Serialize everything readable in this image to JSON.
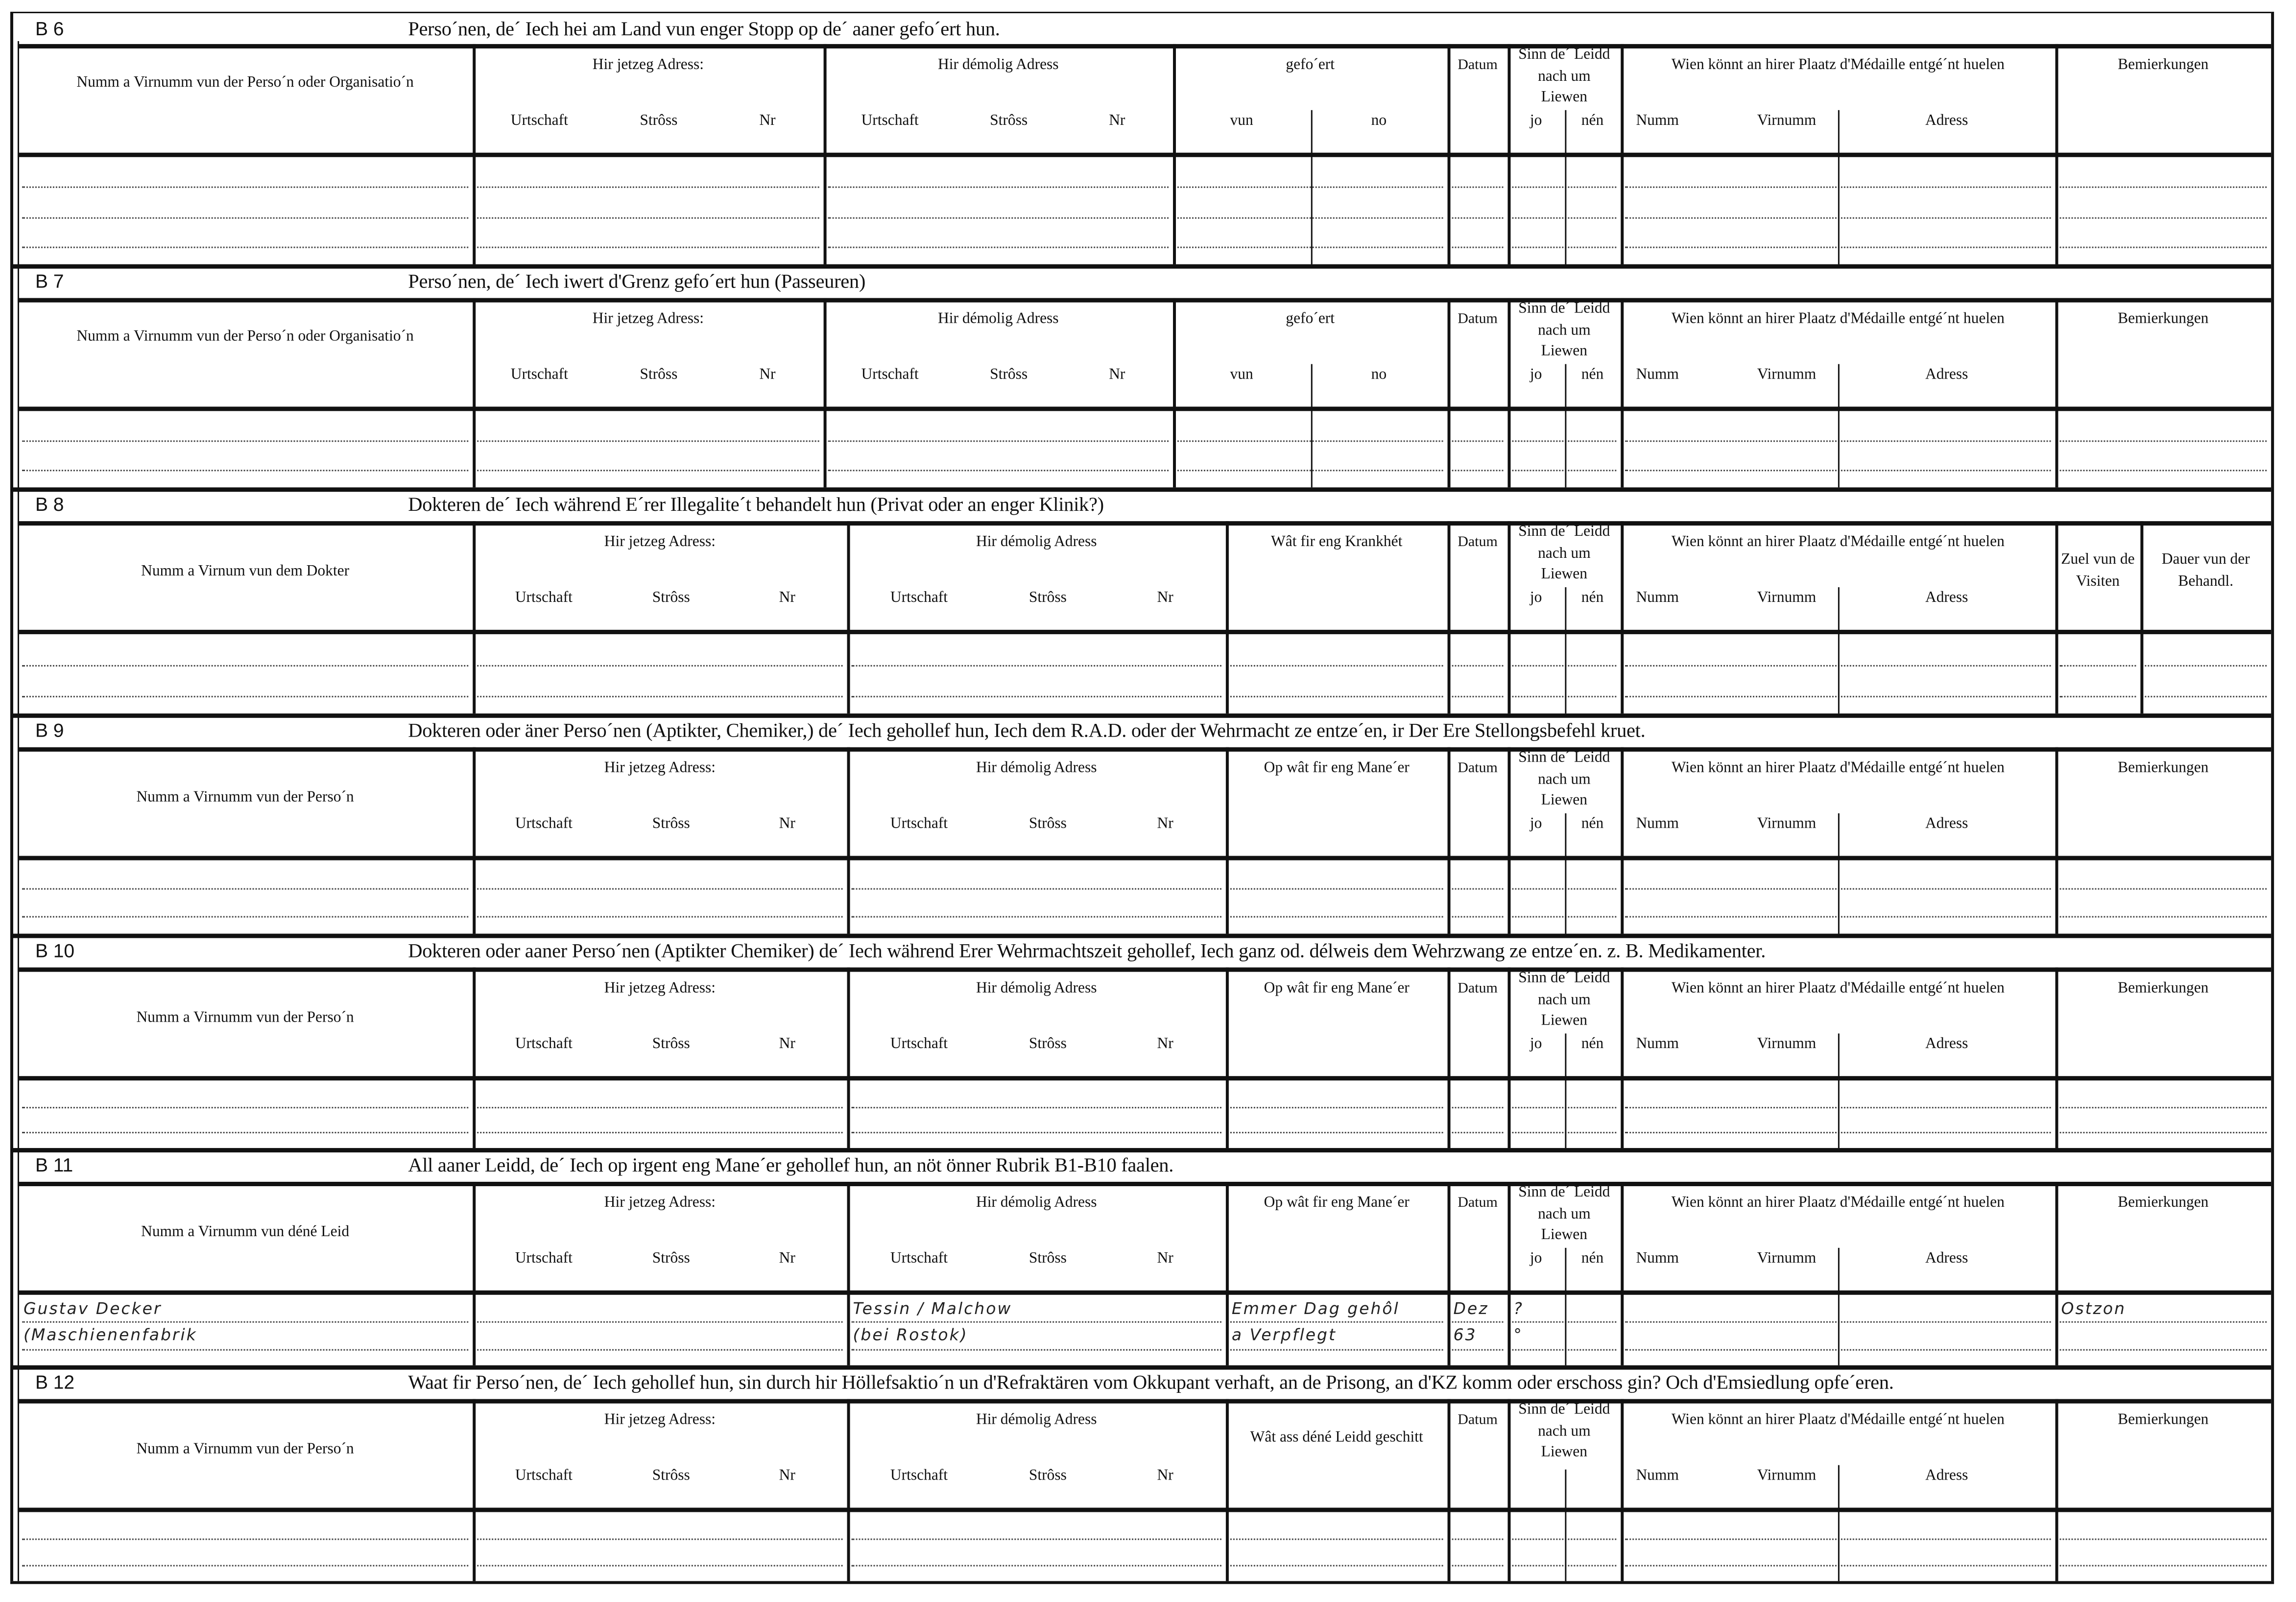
{
  "sections": [
    {
      "label": "B 6",
      "title": "Perso´nen, de´ Iech hei am Land vun enger Stopp op de´ aaner gefo´ert hun.",
      "headers": [
        {
          "main": "Numm a Virnumm vun der Perso´n oder Organisatio´n"
        },
        {
          "main": "Hir jetzeg Adress:",
          "sub": [
            "Urtschaft",
            "Strôss",
            "Nr"
          ]
        },
        {
          "main": "Hir démolig Adress",
          "sub": [
            "Urtschaft",
            "Strôss",
            "Nr"
          ]
        },
        {
          "main": "gefo´ert",
          "sub": [
            "vun",
            "no"
          ]
        },
        {
          "main": "Datum"
        },
        {
          "main": "Sinn de´ Leidd nach um Liewen",
          "sub": [
            "jo",
            "nén"
          ]
        },
        {
          "main": "Wien könnt an hirer Plaatz d'Médaille entgé´nt huelen",
          "sub": [
            "Numm",
            "Virnumm",
            "Adress"
          ]
        },
        {
          "main": "Bemierkungen"
        }
      ]
    },
    {
      "label": "B 7",
      "title": "Perso´nen, de´ Iech iwert d'Grenz gefo´ert hun (Passeuren)",
      "headers": [
        {
          "main": "Numm a Virnumm vun der Perso´n oder Organisatio´n"
        },
        {
          "main": "Hir jetzeg Adress:",
          "sub": [
            "Urtschaft",
            "Strôss",
            "Nr"
          ]
        },
        {
          "main": "Hir démolig Adress",
          "sub": [
            "Urtschaft",
            "Strôss",
            "Nr"
          ]
        },
        {
          "main": "gefo´ert",
          "sub": [
            "vun",
            "no"
          ]
        },
        {
          "main": "Datum"
        },
        {
          "main": "Sinn de´ Leidd nach um Liewen",
          "sub": [
            "jo",
            "nén"
          ]
        },
        {
          "main": "Wien könnt an hirer Plaatz d'Médaille entgé´nt huelen",
          "sub": [
            "Numm",
            "Virnumm",
            "Adress"
          ]
        },
        {
          "main": "Bemierkungen"
        }
      ]
    },
    {
      "label": "B 8",
      "title": "Dokteren de´ Iech während E´rer Illegalite´t behandelt hun (Privat oder an enger Klinik?)",
      "headers": [
        {
          "main": "Numm a Virnum vun dem Dokter"
        },
        {
          "main": "Hir jetzeg Adress:",
          "sub": [
            "Urtschaft",
            "Strôss",
            "Nr"
          ]
        },
        {
          "main": "Hir démolig Adress",
          "sub": [
            "Urtschaft",
            "Strôss",
            "Nr"
          ]
        },
        {
          "main": "Wât fir eng Krankhét"
        },
        {
          "main": "Datum"
        },
        {
          "main": "Sinn de´ Leidd nach um Liewen",
          "sub": [
            "jo",
            "nén"
          ]
        },
        {
          "main": "Wien könnt an hirer Plaatz d'Médaille entgé´nt huelen",
          "sub": [
            "Numm",
            "Virnumm",
            "Adress"
          ]
        },
        {
          "main": "Zuel vun de Visiten"
        },
        {
          "main": "Dauer vun der Behandl."
        }
      ]
    },
    {
      "label": "B 9",
      "title": "Dokteren oder äner Perso´nen (Aptikter, Chemiker,) de´ Iech gehollef hun, Iech dem R.A.D. oder der Wehrmacht ze entze´en, ir Der Ere Stellongsbefehl kruet.",
      "headers": [
        {
          "main": "Numm a Virnumm vun der Perso´n"
        },
        {
          "main": "Hir jetzeg Adress:",
          "sub": [
            "Urtschaft",
            "Strôss",
            "Nr"
          ]
        },
        {
          "main": "Hir démolig Adress",
          "sub": [
            "Urtschaft",
            "Strôss",
            "Nr"
          ]
        },
        {
          "main": "Op wât fir eng Mane´er"
        },
        {
          "main": "Datum"
        },
        {
          "main": "Sinn de´ Leidd nach um Liewen",
          "sub": [
            "jo",
            "nén"
          ]
        },
        {
          "main": "Wien könnt an hirer Plaatz d'Médaille entgé´nt huelen",
          "sub": [
            "Numm",
            "Virnumm",
            "Adress"
          ]
        },
        {
          "main": "Bemierkungen"
        }
      ]
    },
    {
      "label": "B 10",
      "title": "Dokteren oder aaner Perso´nen (Aptikter Chemiker) de´ Iech während Erer Wehrmachtszeit gehollef, Iech ganz od. délweis dem Wehrzwang ze entze´en. z. B. Medikamenter.",
      "headers": [
        {
          "main": "Numm a Virnumm vun der Perso´n"
        },
        {
          "main": "Hir jetzeg Adress:",
          "sub": [
            "Urtschaft",
            "Strôss",
            "Nr"
          ]
        },
        {
          "main": "Hir démolig Adress",
          "sub": [
            "Urtschaft",
            "Strôss",
            "Nr"
          ]
        },
        {
          "main": "Op wât fir eng Mane´er"
        },
        {
          "main": "Datum"
        },
        {
          "main": "Sinn de´ Leidd nach um Liewen",
          "sub": [
            "jo",
            "nén"
          ]
        },
        {
          "main": "Wien könnt an hirer Plaatz d'Médaille entgé´nt huelen",
          "sub": [
            "Numm",
            "Virnumm",
            "Adress"
          ]
        },
        {
          "main": "Bemierkungen"
        }
      ]
    },
    {
      "label": "B 11",
      "title": "All aaner Leidd, de´ Iech op irgent eng Mane´er gehollef hun, an nöt önner Rubrik B1-B10 faalen.",
      "headers": [
        {
          "main": "Numm a Virnumm vun déné Leid"
        },
        {
          "main": "Hir jetzeg Adress:",
          "sub": [
            "Urtschaft",
            "Strôss",
            "Nr"
          ]
        },
        {
          "main": "Hir démolig Adress",
          "sub": [
            "Urtschaft",
            "Strôss",
            "Nr"
          ]
        },
        {
          "main": "Op wât fir eng Mane´er"
        },
        {
          "main": "Datum"
        },
        {
          "main": "Sinn de´ Leidd nach um Liewen",
          "sub": [
            "jo",
            "nén"
          ]
        },
        {
          "main": "Wien könnt an hirer Plaatz d'Médaille entgé´nt huelen",
          "sub": [
            "Numm",
            "Virnumm",
            "Adress"
          ]
        },
        {
          "main": "Bemierkungen"
        }
      ],
      "entry": {
        "name": [
          "Gustav Decker",
          "(Maschienenfabrik"
        ],
        "former_address": [
          "Tessin / Malchow",
          "(bei Rostok)"
        ],
        "how": [
          "Emmer Dag gehôl",
          "a Verpflegt"
        ],
        "date": [
          "Dez",
          "63"
        ],
        "alive_yes": [
          "?",
          "°"
        ],
        "remarks": [
          "Ostzon"
        ]
      }
    },
    {
      "label": "B 12",
      "title": "Waat fir Perso´nen, de´ Iech gehollef hun, sin durch hir Höllefsaktio´n un d'Refraktären vom Okkupant verhaft, an de Prisong, an d'KZ komm oder erschoss gin? Och d'Emsiedlung opfe´eren.",
      "headers": [
        {
          "main": "Numm a Virnumm vun der Perso´n"
        },
        {
          "main": "Hir jetzeg Adress:",
          "sub": [
            "Urtschaft",
            "Strôss",
            "Nr"
          ]
        },
        {
          "main": "Hir démolig Adress",
          "sub": [
            "Urtschaft",
            "Strôss",
            "Nr"
          ]
        },
        {
          "main": "Wât ass déné Leidd geschitt"
        },
        {
          "main": "Datum"
        },
        {
          "main": "Sinn de´ Leidd nach um Liewen"
        },
        {
          "main": "Wien könnt an hirer Plaatz d'Médaille entgé´nt huelen",
          "sub": [
            "Numm",
            "Virnumm",
            "Adress"
          ]
        },
        {
          "main": "Bemierkungen"
        }
      ]
    }
  ]
}
